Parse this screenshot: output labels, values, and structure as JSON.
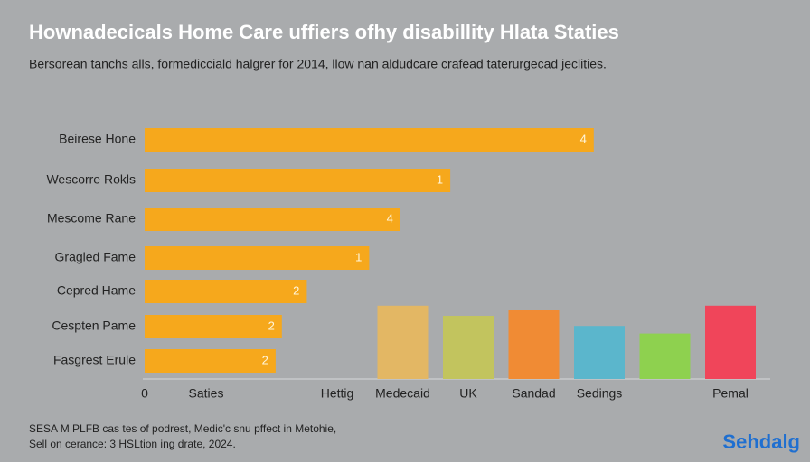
{
  "title": "Hownadecicals Home Care uffiers ofhy disabillity Hlata Staties",
  "subtitle": "Bersorean tanchs alls, formedicciald halgrer for 2014, llow nan aldudcare crafead taterurgecad jeclities.",
  "footer": [
    "SESA M PLFB cas tes of podrest, Medic'c snu pffect in Metohie,",
    "Sell on cerance: 3 HSLtion ing drate, 2024."
  ],
  "logo": "Sehdalg",
  "chart_data": [
    {
      "type": "barh",
      "categories": [
        "Beirese Hone",
        "Wescorre Rokls",
        "Mescome Rane",
        "Gragled Fame",
        "Cepred Hame",
        "Cespten Pame",
        "Fasgrest Erule"
      ],
      "values": [
        72,
        49,
        41,
        36,
        26,
        22,
        21
      ],
      "annotations": [
        "4",
        "1",
        "4",
        "1",
        "2",
        "2",
        "2"
      ],
      "color": "#f6a81c",
      "xlim": [
        0,
        100
      ],
      "xticks": [
        0
      ]
    },
    {
      "type": "bar",
      "categories": [
        "Saties",
        null,
        "Hettig",
        "Medecaid",
        "UK",
        "Sandad",
        "Sedings",
        null,
        "Pemal"
      ],
      "values": [
        null,
        null,
        null,
        29,
        25,
        27.5,
        21,
        18,
        29
      ],
      "colors": [
        null,
        null,
        null,
        "#e3b764",
        "#c2c45e",
        "#f08b34",
        "#5bb6cc",
        "#8ed14f",
        "#f0455a"
      ],
      "ylim": [
        0,
        100
      ]
    }
  ]
}
